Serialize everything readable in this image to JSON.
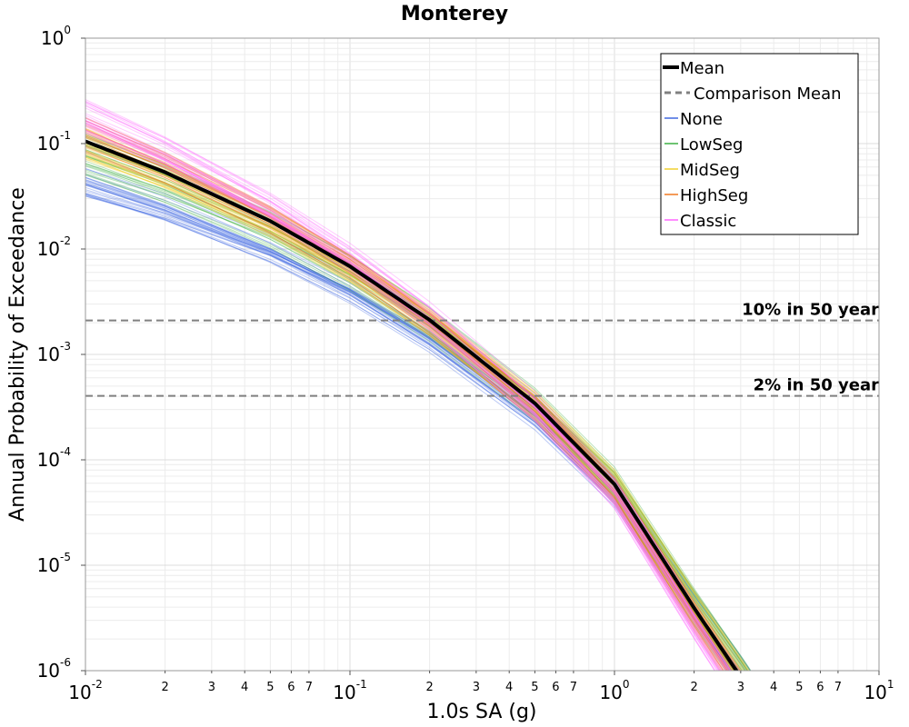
{
  "chart_data": {
    "type": "line",
    "title": "Monterey",
    "xlabel": "1.0s SA (g)",
    "ylabel": "Annual Probability of Exceedance",
    "x_scale": "log",
    "y_scale": "log",
    "xlim": [
      0.01,
      10
    ],
    "ylim": [
      1e-06,
      1
    ],
    "grid": true,
    "legend_position": "top-right",
    "x_major_ticks": [
      {
        "base": "10",
        "exp": "-2",
        "value": 0.01
      },
      {
        "base": "10",
        "exp": "-1",
        "value": 0.1
      },
      {
        "base": "10",
        "exp": "0",
        "value": 1
      },
      {
        "base": "10",
        "exp": "1",
        "value": 10
      }
    ],
    "x_minor_labels": [
      "2",
      "3",
      "4",
      "5",
      "6",
      "7"
    ],
    "y_major_ticks": [
      {
        "base": "10",
        "exp": "0",
        "value": 1
      },
      {
        "base": "10",
        "exp": "-1",
        "value": 0.1
      },
      {
        "base": "10",
        "exp": "-2",
        "value": 0.01
      },
      {
        "base": "10",
        "exp": "-3",
        "value": 0.001
      },
      {
        "base": "10",
        "exp": "-4",
        "value": 0.0001
      },
      {
        "base": "10",
        "exp": "-5",
        "value": 1e-05
      },
      {
        "base": "10",
        "exp": "-6",
        "value": 1e-06
      }
    ],
    "reference_lines": [
      {
        "label": "10% in 50 year",
        "y": 0.0021
      },
      {
        "label": "2% in 50 year",
        "y": 0.000404
      }
    ],
    "legend": [
      {
        "label": "Mean",
        "color": "#000000",
        "style": "solid-thick"
      },
      {
        "label": "Comparison Mean",
        "color": "#808080",
        "style": "dashed"
      },
      {
        "label": "None",
        "color": "#4169e1",
        "style": "solid"
      },
      {
        "label": "LowSeg",
        "color": "#3cb043",
        "style": "solid"
      },
      {
        "label": "MidSeg",
        "color": "#f0d030",
        "style": "solid"
      },
      {
        "label": "HighSeg",
        "color": "#f07820",
        "style": "solid"
      },
      {
        "label": "Classic",
        "color": "#ff66ff",
        "style": "solid"
      }
    ],
    "mean_curve": {
      "name": "Mean",
      "x": [
        0.01,
        0.02,
        0.05,
        0.1,
        0.2,
        0.5,
        1,
        2,
        3
      ],
      "y": [
        0.105,
        0.0535,
        0.0184,
        0.00684,
        0.00212,
        0.000344,
        5.86e-05,
        3.94e-06,
        8.7e-07
      ]
    },
    "branch_families": [
      {
        "name": "None",
        "color": "#4169e1",
        "y_at_0_01": [
          0.03,
          0.06
        ],
        "y_at_3": [
          6e-07,
          1.4e-06
        ]
      },
      {
        "name": "LowSeg",
        "color": "#3cb043",
        "y_at_0_01": [
          0.05,
          0.13
        ],
        "y_at_3": [
          6e-07,
          1.4e-06
        ]
      },
      {
        "name": "MidSeg",
        "color": "#f0d030",
        "y_at_0_01": [
          0.07,
          0.15
        ],
        "y_at_3": [
          6e-07,
          1.4e-06
        ]
      },
      {
        "name": "HighSeg",
        "color": "#f07820",
        "y_at_0_01": [
          0.08,
          0.18
        ],
        "y_at_3": [
          5e-07,
          1e-06
        ]
      },
      {
        "name": "Classic",
        "color": "#ff66ff",
        "y_at_0_01": [
          0.12,
          0.27
        ],
        "y_at_3": [
          4e-07,
          9e-07
        ]
      }
    ]
  }
}
